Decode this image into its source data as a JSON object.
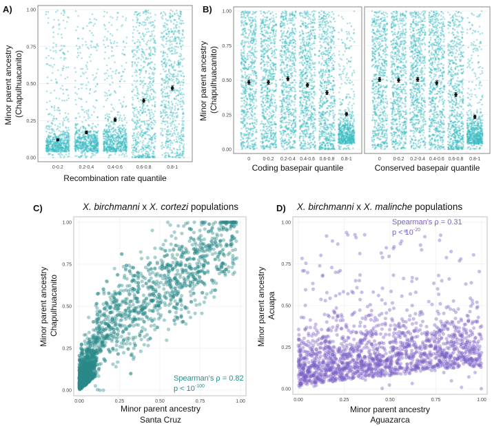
{
  "panel_labels": [
    "A)",
    "B)",
    "C)",
    "D)"
  ],
  "colors": {
    "teal": "#3bbdc3",
    "dark_teal": "#2a8a8a",
    "purple": "#7a5fc6"
  },
  "chart_data": [
    {
      "id": "A",
      "type": "scatter",
      "subtype": "jittered strip plot with mean and standard error",
      "title": "",
      "xlabel": "Recombination rate quantile",
      "ylabel": "Minor parent ancestry\n(Chapulhuacanito)",
      "categories": [
        "0-0.2",
        "0.2-0.4",
        "0.4-0.6",
        "0.6-0.8",
        "0.8-1"
      ],
      "means": [
        0.12,
        0.17,
        0.255,
        0.385,
        0.47
      ],
      "errors": [
        0.008,
        0.01,
        0.012,
        0.013,
        0.014
      ],
      "ylim": [
        0,
        1
      ],
      "yticks": [
        "0.00",
        "0.25",
        "0.50",
        "0.75",
        "1.00"
      ],
      "grid": true,
      "color": "#3bbdc3"
    },
    {
      "id": "B1",
      "type": "scatter",
      "subtype": "jittered strip plot with mean and standard error",
      "title": "",
      "xlabel": "Coding basepair quantile",
      "ylabel": "Minor parent ancestry\n(Chapulhuacanito)",
      "categories": [
        "0",
        "0-0.2",
        "0.2-0.4",
        "0.4-0.6",
        "0.6-0.8",
        "0.8-1"
      ],
      "means": [
        0.485,
        0.485,
        0.51,
        0.465,
        0.41,
        0.255
      ],
      "errors": [
        0.015,
        0.015,
        0.015,
        0.015,
        0.015,
        0.013
      ],
      "ylim": [
        0,
        1
      ],
      "yticks": [
        "0.00",
        "0.25",
        "0.50",
        "0.75",
        "1.00"
      ],
      "grid": true,
      "color": "#3bbdc3"
    },
    {
      "id": "B2",
      "type": "scatter",
      "subtype": "jittered strip plot with mean and standard error",
      "title": "",
      "xlabel": "Conserved basepair quantile",
      "ylabel": "",
      "categories": [
        "0",
        "0-0.2",
        "0.2-0.4",
        "0.4-0.6",
        "0.6-0.8",
        "0.8-1"
      ],
      "means": [
        0.505,
        0.5,
        0.505,
        0.48,
        0.395,
        0.235
      ],
      "errors": [
        0.015,
        0.015,
        0.015,
        0.015,
        0.015,
        0.013
      ],
      "ylim": [
        0,
        1
      ],
      "grid": true,
      "color": "#3bbdc3"
    },
    {
      "id": "C",
      "type": "scatter",
      "title_italic_1": "X. birchmanni",
      "title_mid": " x ",
      "title_italic_2": "X. cortezi",
      "title_rest": " populations",
      "xlabel_1": "Minor parent ancestry",
      "xlabel_2": "Santa Cruz",
      "ylabel_1": "Minor parent ancestry",
      "ylabel_2": "Chapulhuacanito",
      "xlim": [
        0,
        1
      ],
      "ylim": [
        0,
        1
      ],
      "xticks": [
        "0.00",
        "0.25",
        "0.50",
        "0.75",
        "1.00"
      ],
      "yticks": [
        "0.00",
        "0.25",
        "0.50",
        "0.75",
        "1.00"
      ],
      "annotation_1": "Spearman's ρ = 0.82",
      "annotation_2_base": "p < 10",
      "annotation_2_exp": "-100",
      "spearman_rho": 0.82,
      "grid": true,
      "color": "#2a8a8a"
    },
    {
      "id": "D",
      "type": "scatter",
      "title_italic_1": "X. birchmanni",
      "title_mid": " x ",
      "title_italic_2": "X. malinche",
      "title_rest": " populations",
      "xlabel_1": "Minor parent ancestry",
      "xlabel_2": "Aguazarca",
      "ylabel_1": "Minor parent ancestry",
      "ylabel_2": "Acuapa",
      "xlim": [
        0,
        1
      ],
      "ylim": [
        0,
        1
      ],
      "xticks": [
        "0.00",
        "0.25",
        "0.50",
        "0.75",
        "1.00"
      ],
      "yticks": [
        "0.00",
        "0.25",
        "0.50",
        "0.75",
        "1.00"
      ],
      "annotation_1": "Spearman's ρ = 0.31",
      "annotation_2_base": "p < 10",
      "annotation_2_exp": "-20",
      "spearman_rho": 0.31,
      "grid": true,
      "color": "#7a5fc6"
    }
  ]
}
